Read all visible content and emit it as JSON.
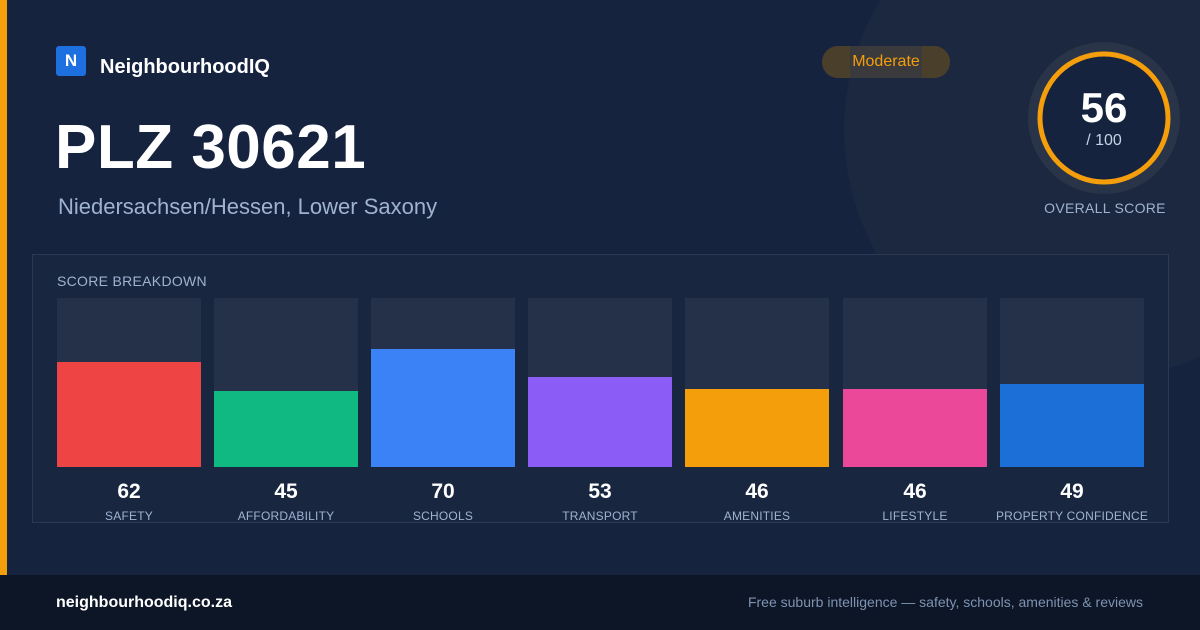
{
  "brand": {
    "logo_letter": "N",
    "name": "NeighbourhoodIQ"
  },
  "location": {
    "title": "PLZ 30621",
    "subtitle": "Niedersachsen/Hessen, Lower Saxony"
  },
  "rating_badge": "Moderate",
  "overall": {
    "score": "56",
    "max_label": "/ 100",
    "score_fraction": 0.56,
    "caption": "OVERALL SCORE",
    "ring_color": "#f59e0b"
  },
  "breakdown": {
    "title": "SCORE BREAKDOWN",
    "items": [
      {
        "label": "SAFETY",
        "value": "62",
        "level": 0.62,
        "color": "#ef4444"
      },
      {
        "label": "AFFORDABILITY",
        "value": "45",
        "level": 0.45,
        "color": "#10b981"
      },
      {
        "label": "SCHOOLS",
        "value": "70",
        "level": 0.7,
        "color": "#3b82f6"
      },
      {
        "label": "TRANSPORT",
        "value": "53",
        "level": 0.53,
        "color": "#8b5cf6"
      },
      {
        "label": "AMENITIES",
        "value": "46",
        "level": 0.46,
        "color": "#f59e0b"
      },
      {
        "label": "LIFESTYLE",
        "value": "46",
        "level": 0.46,
        "color": "#ec4899"
      },
      {
        "label": "PROPERTY CONFIDENCE",
        "value": "49",
        "level": 0.49,
        "color": "#1d6fd8"
      }
    ]
  },
  "footer": {
    "url": "neighbourhoodiq.co.za",
    "tagline": "Free suburb intelligence — safety, schools, amenities & reviews"
  }
}
